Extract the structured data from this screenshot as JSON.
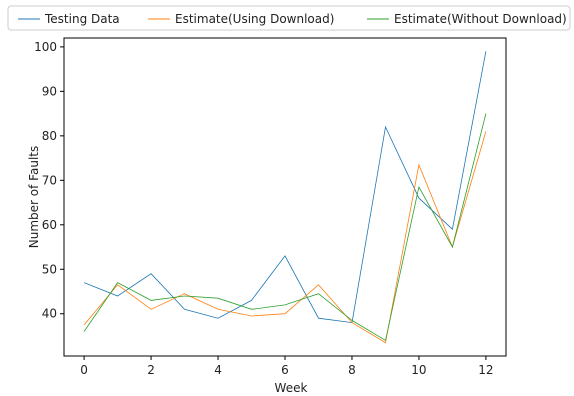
{
  "chart_data": {
    "type": "line",
    "xlabel": "Week",
    "ylabel": "Number of Faults",
    "xlim": [
      -0.6,
      12.6
    ],
    "ylim": [
      30.5,
      102
    ],
    "x": [
      0,
      1,
      2,
      3,
      4,
      5,
      6,
      7,
      8,
      9,
      10,
      11,
      12
    ],
    "x_ticks": [
      0,
      2,
      4,
      6,
      8,
      10,
      12
    ],
    "y_ticks": [
      40,
      50,
      60,
      70,
      80,
      90,
      100
    ],
    "grid": false,
    "legend_placement": "top",
    "series": [
      {
        "name": "Testing Data",
        "color": "#1f77b4",
        "values": [
          47,
          44,
          49,
          41,
          39,
          43,
          53,
          39,
          38,
          82,
          66,
          59,
          99
        ]
      },
      {
        "name": "Estimate(Using Download)",
        "color": "#ff7f0e",
        "values": [
          37.5,
          46.5,
          41,
          44.5,
          41,
          39.5,
          40,
          46.5,
          38,
          33.5,
          73.5,
          55,
          81
        ]
      },
      {
        "name": "Estimate(Without Download)",
        "color": "#2ca02c",
        "values": [
          36,
          47,
          43,
          44,
          43.5,
          41,
          42,
          44.5,
          38.5,
          34,
          68.5,
          55,
          85
        ]
      }
    ]
  }
}
